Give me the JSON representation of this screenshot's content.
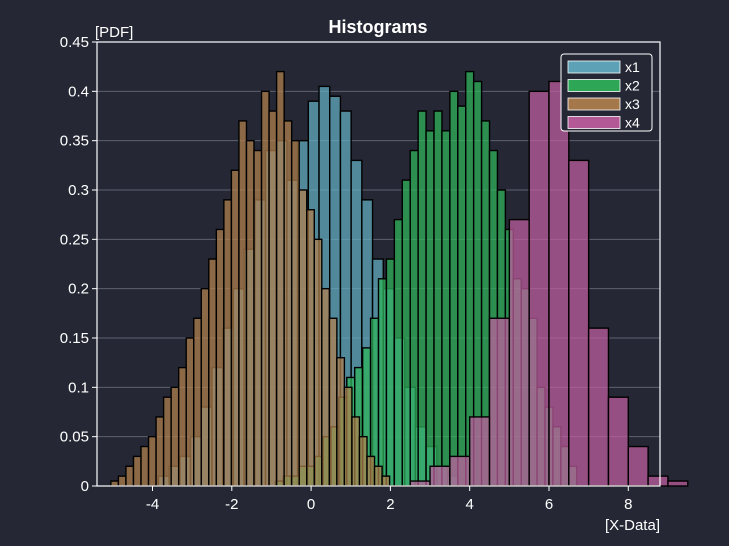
{
  "chart_data": {
    "type": "histogram",
    "title": "Histograms",
    "xlabel": "[X-Data]",
    "ylabel": "[PDF]",
    "xlim": [
      -5.4,
      8.8
    ],
    "ylim": [
      0,
      0.45
    ],
    "xticks": [
      -4,
      -2,
      0,
      2,
      4,
      6,
      8
    ],
    "yticks": [
      0,
      0.05,
      0.1,
      0.15,
      0.2,
      0.25,
      0.3,
      0.35,
      0.4,
      0.45
    ],
    "grid": true,
    "legend_position": "top-right",
    "series": [
      {
        "name": "x1",
        "color": "#63aec4",
        "x_start": -3.85,
        "bin_width": 0.27,
        "values": [
          0.01,
          0.02,
          0.03,
          0.05,
          0.08,
          0.12,
          0.16,
          0.2,
          0.24,
          0.29,
          0.34,
          0.35,
          0.31,
          0.35,
          0.39,
          0.405,
          0.395,
          0.38,
          0.33,
          0.29,
          0.23,
          0.2,
          0.15,
          0.1,
          0.06,
          0.04,
          0.02,
          0.01
        ]
      },
      {
        "name": "x2",
        "color": "#2fb55a",
        "x_start": -0.9,
        "bin_width": 0.2,
        "values": [
          0.005,
          0.01,
          0.01,
          0.02,
          0.02,
          0.03,
          0.05,
          0.06,
          0.09,
          0.11,
          0.12,
          0.14,
          0.17,
          0.21,
          0.23,
          0.27,
          0.31,
          0.34,
          0.38,
          0.36,
          0.38,
          0.36,
          0.4,
          0.385,
          0.42,
          0.41,
          0.37,
          0.34,
          0.3,
          0.26,
          0.21,
          0.2,
          0.17,
          0.1,
          0.08,
          0.06,
          0.04,
          0.02
        ]
      },
      {
        "name": "x3",
        "color": "#b3814d",
        "x_start": -5.05,
        "bin_width": 0.19,
        "values": [
          0.005,
          0.01,
          0.02,
          0.03,
          0.04,
          0.05,
          0.07,
          0.09,
          0.1,
          0.12,
          0.15,
          0.17,
          0.2,
          0.23,
          0.26,
          0.29,
          0.32,
          0.37,
          0.35,
          0.34,
          0.4,
          0.38,
          0.42,
          0.37,
          0.35,
          0.3,
          0.28,
          0.25,
          0.2,
          0.17,
          0.13,
          0.1,
          0.07,
          0.05,
          0.03,
          0.02,
          0.01
        ]
      },
      {
        "name": "x4",
        "color": "#c25ea1",
        "x_start": 2.5,
        "bin_width": 0.5,
        "values": [
          0.005,
          0.02,
          0.03,
          0.07,
          0.17,
          0.27,
          0.4,
          0.41,
          0.33,
          0.16,
          0.09,
          0.04,
          0.01,
          0.005
        ]
      }
    ]
  }
}
